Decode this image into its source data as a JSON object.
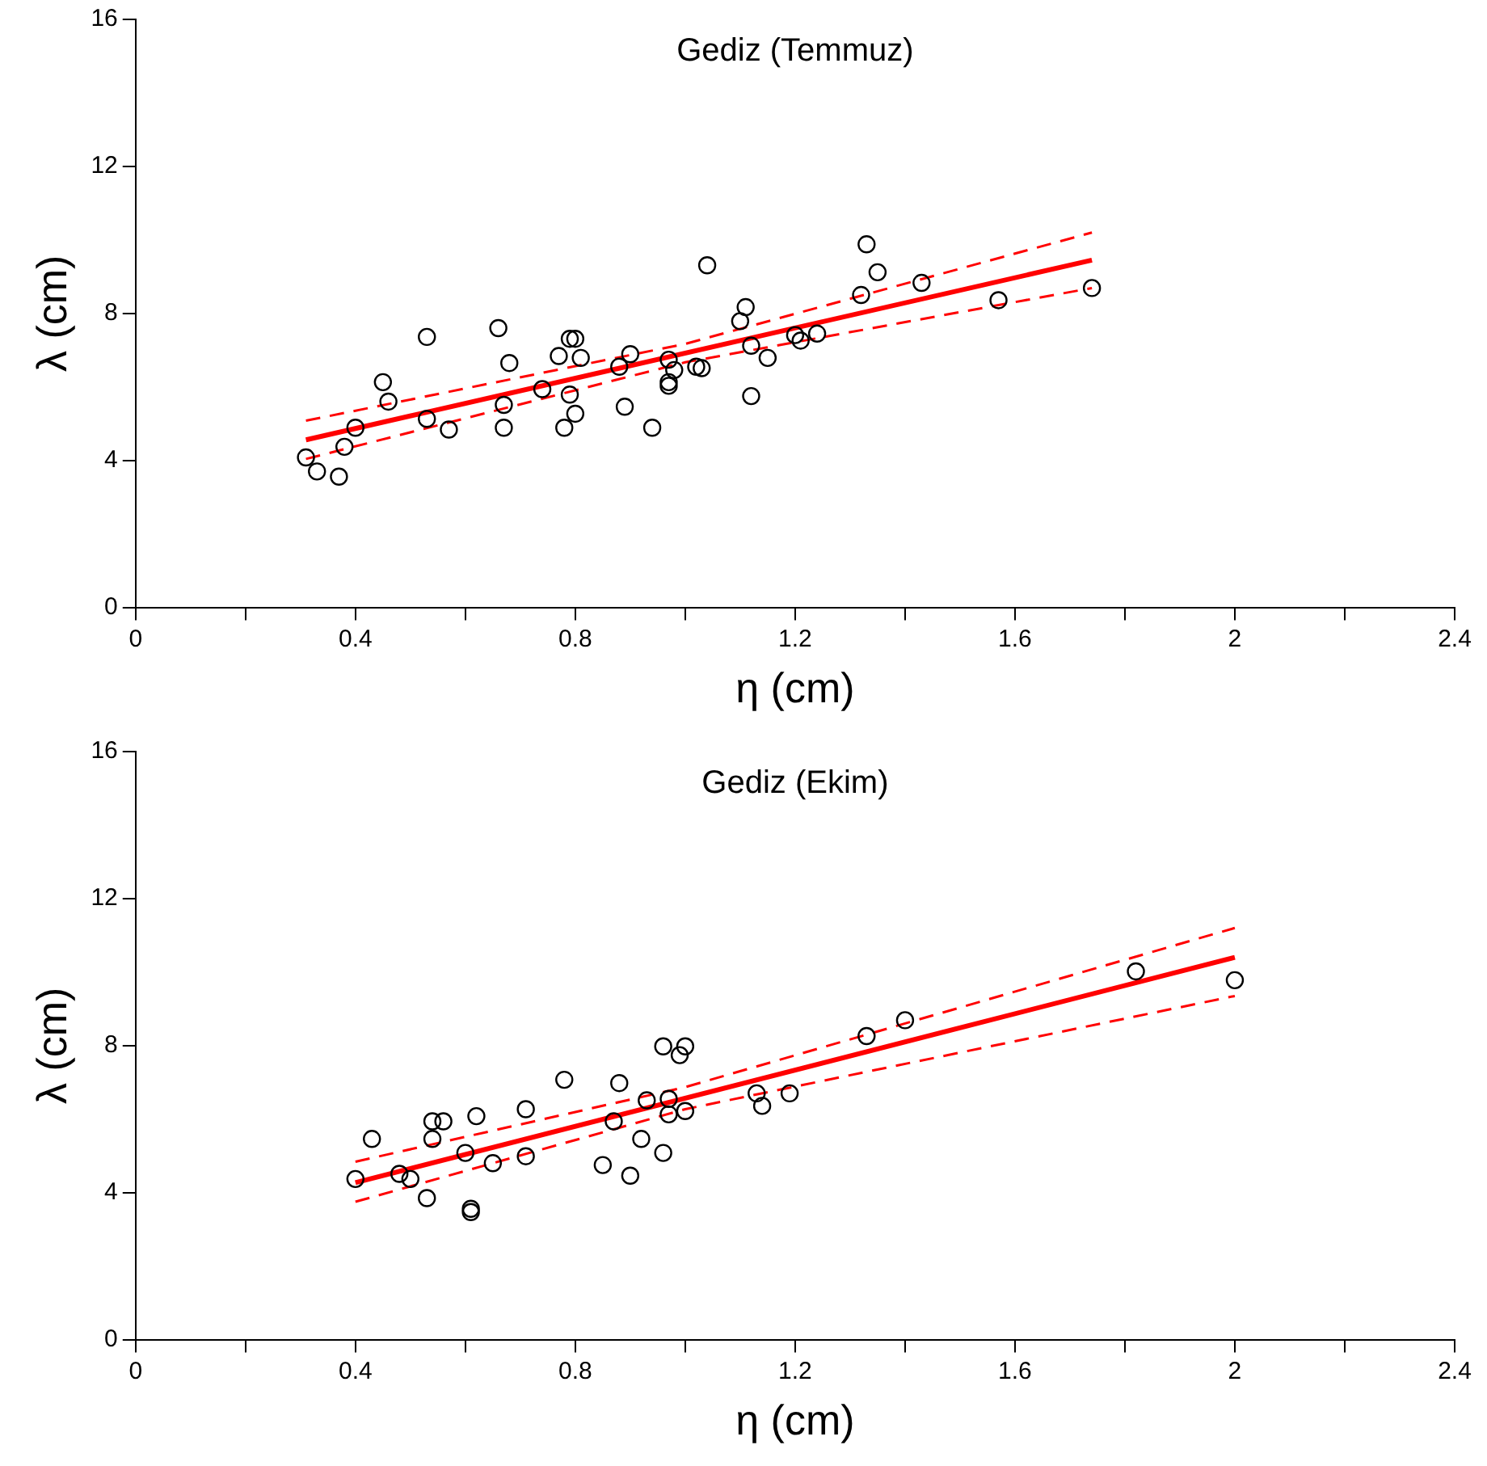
{
  "chart_data": [
    {
      "type": "scatter",
      "title": "Gediz (Temmuz)",
      "xlabel": "η (cm)",
      "ylabel": "λ (cm)",
      "xlim": [
        0,
        2.4
      ],
      "ylim": [
        0,
        16
      ],
      "xticks": [
        0,
        {
          "value": 0.2,
          "label": null
        },
        0.4,
        {
          "value": 0.6,
          "label": null
        },
        0.8,
        {
          "value": 1.0,
          "label": null
        },
        1.2,
        {
          "value": 1.4,
          "label": null
        },
        1.6,
        {
          "value": 1.8,
          "label": null
        },
        2,
        {
          "value": 2.2,
          "label": null
        },
        2.4
      ],
      "yticks": [
        0,
        4,
        8,
        12,
        16
      ],
      "grid": false,
      "legend": false,
      "series": [
        {
          "type": "scatter",
          "color": "#000000",
          "marker": "circle",
          "x": [
            0.31,
            0.33,
            0.37,
            0.38,
            0.4,
            0.45,
            0.46,
            0.53,
            0.53,
            0.57,
            0.66,
            0.68,
            0.67,
            0.67,
            0.74,
            0.77,
            0.79,
            0.8,
            0.81,
            0.79,
            0.8,
            0.78,
            0.88,
            0.9,
            0.89,
            0.94,
            0.97,
            0.98,
            0.97,
            0.97,
            1.02,
            1.03,
            1.04,
            1.1,
            1.11,
            1.12,
            1.12,
            1.15,
            1.2,
            1.21,
            1.24,
            1.32,
            1.33,
            1.35,
            1.43,
            1.57,
            1.74
          ],
          "values": [
            4.08,
            3.7,
            3.56,
            4.37,
            4.89,
            6.13,
            5.6,
            7.36,
            5.13,
            4.84,
            7.6,
            6.65,
            5.51,
            4.89,
            5.94,
            6.84,
            7.31,
            7.31,
            6.79,
            5.79,
            5.27,
            4.89,
            6.55,
            6.89,
            5.46,
            4.89,
            6.74,
            6.46,
            6.13,
            6.03,
            6.55,
            6.51,
            9.31,
            7.79,
            8.17,
            7.12,
            5.75,
            6.79,
            7.41,
            7.26,
            7.45,
            8.5,
            9.88,
            9.12,
            8.83,
            8.36,
            8.69
          ]
        },
        {
          "type": "line",
          "color": "#ff0000",
          "marker": "none",
          "line_style": "solid",
          "x": [
            0.31,
            1.74
          ],
          "values": [
            4.56,
            9.45
          ]
        },
        {
          "type": "line",
          "color": "#ff0000",
          "marker": "none",
          "line_style": "dashed",
          "x": [
            0.31,
            1.0,
            1.74
          ],
          "values": [
            5.08,
            7.17,
            10.2
          ]
        },
        {
          "type": "line",
          "color": "#ff0000",
          "marker": "none",
          "line_style": "dashed",
          "x": [
            0.31,
            1.0,
            1.74
          ],
          "values": [
            4.04,
            6.67,
            8.69
          ]
        }
      ]
    },
    {
      "type": "scatter",
      "title": "Gediz (Ekim)",
      "xlabel": "η (cm)",
      "ylabel": "λ (cm)",
      "xlim": [
        0,
        2.4
      ],
      "ylim": [
        0,
        16
      ],
      "xticks": [
        0,
        {
          "value": 0.2,
          "label": null
        },
        0.4,
        {
          "value": 0.6,
          "label": null
        },
        0.8,
        {
          "value": 1.0,
          "label": null
        },
        1.2,
        {
          "value": 1.4,
          "label": null
        },
        1.6,
        {
          "value": 1.8,
          "label": null
        },
        2,
        {
          "value": 2.2,
          "label": null
        },
        2.4
      ],
      "yticks": [
        0,
        4,
        8,
        12,
        16
      ],
      "grid": false,
      "legend": false,
      "series": [
        {
          "type": "scatter",
          "color": "#000000",
          "marker": "circle",
          "x": [
            0.4,
            0.43,
            0.48,
            0.5,
            0.53,
            0.54,
            0.56,
            0.54,
            0.62,
            0.6,
            0.61,
            0.61,
            0.65,
            0.71,
            0.71,
            0.78,
            0.85,
            0.87,
            0.88,
            0.9,
            0.92,
            0.93,
            0.96,
            0.99,
            1.0,
            0.97,
            0.97,
            0.96,
            1.0,
            1.13,
            1.14,
            1.19,
            1.33,
            1.4,
            1.82,
            2.0
          ],
          "values": [
            4.37,
            5.46,
            4.51,
            4.37,
            3.85,
            5.94,
            5.94,
            5.46,
            6.08,
            5.08,
            3.47,
            3.56,
            4.8,
            6.27,
            4.99,
            7.07,
            4.75,
            5.94,
            6.98,
            4.46,
            5.46,
            6.51,
            7.98,
            7.74,
            7.98,
            6.55,
            6.13,
            5.08,
            6.22,
            6.7,
            6.36,
            6.7,
            8.26,
            8.69,
            10.02,
            9.78
          ]
        },
        {
          "type": "line",
          "color": "#ff0000",
          "marker": "none",
          "line_style": "solid",
          "x": [
            0.4,
            2.0
          ],
          "values": [
            4.27,
            10.4
          ]
        },
        {
          "type": "line",
          "color": "#ff0000",
          "marker": "none",
          "line_style": "dashed",
          "x": [
            0.4,
            1.0,
            2.0
          ],
          "values": [
            4.84,
            6.87,
            11.2
          ]
        },
        {
          "type": "line",
          "color": "#ff0000",
          "marker": "none",
          "line_style": "dashed",
          "x": [
            0.4,
            1.0,
            2.0
          ],
          "values": [
            3.75,
            6.27,
            9.35
          ]
        }
      ]
    }
  ]
}
